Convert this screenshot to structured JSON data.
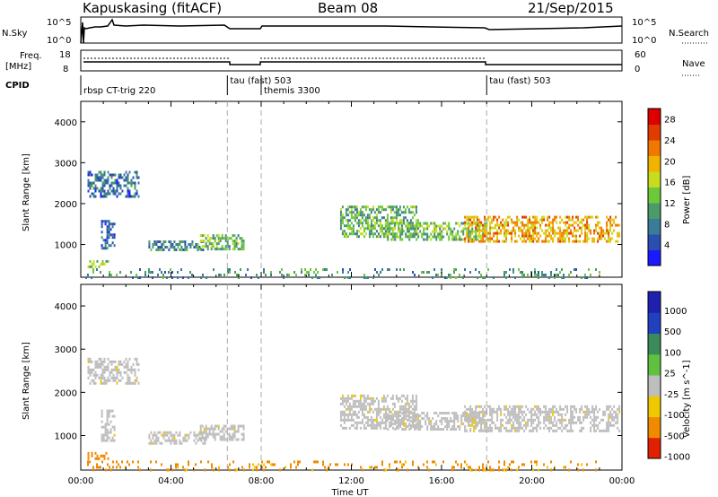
{
  "header": {
    "station": "Kapuskasing (fitACF)",
    "beam": "Beam 08",
    "date": "21/Sep/2015"
  },
  "top_panels": {
    "nsky_label": "N.Sky",
    "nsky_ticks": [
      "10^5",
      "10^0"
    ],
    "nsearch_label": "N.Search",
    "nsearch_ticks": [
      "10^5",
      "10^0"
    ],
    "freq_label_1": "Freq.",
    "freq_label_2": "[MHz]",
    "freq_ticks": [
      "18",
      "8"
    ],
    "nave_label": "Nave",
    "nave_ticks": [
      "60",
      "0"
    ],
    "cpid_label": "CPID",
    "cpid_entries": [
      {
        "text": "rbsp CT-trig 220",
        "start_hour": 0.0
      },
      {
        "text": "tau (fast) 503",
        "start_hour": 6.5
      },
      {
        "text": "themis 3300",
        "start_hour": 8.0
      },
      {
        "text": "tau (fast) 503",
        "start_hour": 18.0
      }
    ]
  },
  "chart_data": [
    {
      "type": "heatmap",
      "parameter": "power",
      "xlabel": "Time UT",
      "ylabel": "Slant Range [km]",
      "xlim": [
        0,
        24
      ],
      "ylim": [
        200,
        4500
      ],
      "x_ticks": [
        "00:00",
        "04:00",
        "08:00",
        "12:00",
        "16:00",
        "20:00",
        "00:00"
      ],
      "y_ticks": [
        1000,
        2000,
        3000,
        4000
      ],
      "colorbar_label": "Power [dB]",
      "colorbar_ticks": [
        4,
        8,
        12,
        16,
        20,
        24,
        28
      ],
      "colorbar_range": [
        0,
        30
      ],
      "mode_change_hours": [
        6.5,
        8.0,
        18.0
      ],
      "regions": [
        {
          "t0": 0.3,
          "t1": 2.6,
          "r0": 2200,
          "r1": 2800,
          "level": 7
        },
        {
          "t0": 0.9,
          "t1": 1.5,
          "r0": 900,
          "r1": 1600,
          "level": 6
        },
        {
          "t0": 0.3,
          "t1": 1.2,
          "r0": 480,
          "r1": 620,
          "level": 14
        },
        {
          "t0": 3.0,
          "t1": 5.5,
          "r0": 850,
          "r1": 1100,
          "level": 9
        },
        {
          "t0": 5.2,
          "t1": 7.2,
          "r0": 900,
          "r1": 1250,
          "level": 13
        },
        {
          "t0": 11.5,
          "t1": 15.0,
          "r0": 1200,
          "r1": 1950,
          "level": 12
        },
        {
          "t0": 13.5,
          "t1": 18.0,
          "r0": 1150,
          "r1": 1550,
          "level": 13
        },
        {
          "t0": 17.0,
          "t1": 23.9,
          "r0": 1100,
          "r1": 1700,
          "level": 20
        },
        {
          "t0": 0.2,
          "t1": 23.0,
          "r0": 220,
          "r1": 420,
          "level": 10
        }
      ]
    },
    {
      "type": "heatmap",
      "parameter": "velocity",
      "xlabel": "Time UT",
      "ylabel": "Slant Range [km]",
      "xlim": [
        0,
        24
      ],
      "ylim": [
        200,
        4500
      ],
      "x_ticks": [
        "00:00",
        "04:00",
        "08:00",
        "12:00",
        "16:00",
        "20:00",
        "00:00"
      ],
      "y_ticks": [
        1000,
        2000,
        3000,
        4000
      ],
      "colorbar_label": "Velocity [m s^-1]",
      "colorbar_ticks": [
        "1000",
        "500",
        "100",
        "25",
        "-25",
        "-100",
        "-500",
        "-1000"
      ],
      "mode_change_hours": [
        6.5,
        8.0,
        18.0
      ],
      "regions": [
        {
          "t0": 0.3,
          "t1": 2.6,
          "r0": 2200,
          "r1": 2800,
          "level": "ground"
        },
        {
          "t0": 0.9,
          "t1": 1.5,
          "r0": 900,
          "r1": 1600,
          "level": "ground"
        },
        {
          "t0": 0.3,
          "t1": 1.2,
          "r0": 480,
          "r1": 620,
          "level": -300
        },
        {
          "t0": 3.0,
          "t1": 5.5,
          "r0": 850,
          "r1": 1100,
          "level": "ground"
        },
        {
          "t0": 5.2,
          "t1": 7.2,
          "r0": 900,
          "r1": 1250,
          "level": "ground"
        },
        {
          "t0": 11.5,
          "t1": 15.0,
          "r0": 1200,
          "r1": 1950,
          "level": "ground"
        },
        {
          "t0": 13.5,
          "t1": 18.0,
          "r0": 1150,
          "r1": 1550,
          "level": "ground"
        },
        {
          "t0": 17.0,
          "t1": 23.9,
          "r0": 1100,
          "r1": 1700,
          "level": "ground"
        },
        {
          "t0": 0.2,
          "t1": 23.0,
          "r0": 220,
          "r1": 420,
          "level": -200
        }
      ]
    }
  ]
}
